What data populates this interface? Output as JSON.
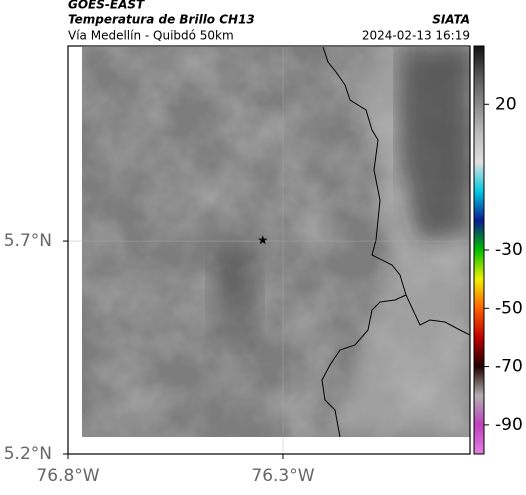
{
  "header": {
    "source": "GOES-EAST",
    "title": "Temperatura de Brillo CH13",
    "org": "SIATA",
    "subtitle": "Vía Medellín - Quibdó 50km",
    "datetime": "2024-02-13 16:19"
  },
  "chart_data": {
    "type": "map",
    "xlim": [
      -76.8,
      -75.865
    ],
    "ylim": [
      5.2,
      6.158
    ],
    "xticks": [
      {
        "value": -76.8,
        "label": "76.8°W"
      },
      {
        "value": -76.3,
        "label": "76.3°W"
      }
    ],
    "yticks": [
      {
        "value": 5.7,
        "label": "5.7°N"
      },
      {
        "value": 5.2,
        "label": "5.2°N"
      }
    ],
    "grid": true,
    "station": {
      "lon": -76.347,
      "lat": 5.702
    },
    "colorbar": {
      "clim": [
        40,
        -100
      ],
      "ticks": [
        20,
        -30,
        -50,
        -70,
        -90
      ],
      "colors": [
        "#111111",
        "#555555",
        "#8a8a8a",
        "#bdbdbd",
        "#e0e0e0",
        "#00c8e0",
        "#0a1a90",
        "#00c000",
        "#f0f000",
        "#ff6000",
        "#c00000",
        "#200000",
        "#b0b0b0",
        "#c040c0",
        "#e080e0"
      ]
    }
  }
}
